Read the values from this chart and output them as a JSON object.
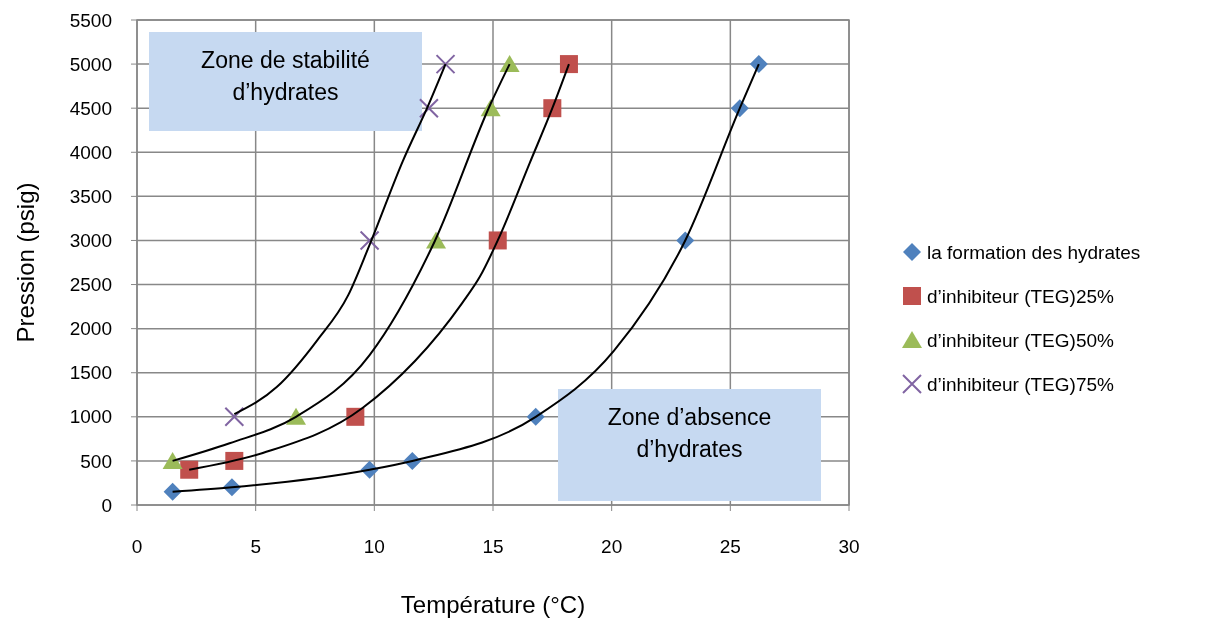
{
  "chart_data": {
    "type": "scatter",
    "xlabel": "Température  (°C)",
    "ylabel": "Pression (psig)",
    "xlim": [
      0,
      30
    ],
    "xticks": [
      0,
      5,
      10,
      15,
      20,
      25,
      30
    ],
    "ylim": [
      0,
      5500
    ],
    "yticks": [
      0,
      500,
      1000,
      1500,
      2000,
      2500,
      3000,
      3500,
      4000,
      4500,
      5000,
      5500
    ],
    "grid": true,
    "legend": "right",
    "annotations": [
      "Zone de stabilité\nd’hydrates",
      "Zone d’absence\nd’hydrates"
    ],
    "series": [
      {
        "name": "la formation des hydrates",
        "color": "#4f81bd",
        "marker": "diamond",
        "x": [
          1.5,
          4,
          9.8,
          11.6,
          16.8,
          23.1,
          25.4,
          26.2
        ],
        "values": [
          150,
          200,
          400,
          500,
          1000,
          3000,
          4500,
          5000
        ]
      },
      {
        "name": "d’inhibiteur (TEG)25%",
        "color": "#c0504d",
        "marker": "square",
        "x": [
          2.2,
          4.1,
          9.2,
          15.2,
          17.5,
          18.2
        ],
        "values": [
          400,
          500,
          1000,
          3000,
          4500,
          5000
        ]
      },
      {
        "name": "d’inhibiteur (TEG)50%",
        "color": "#9bbb59",
        "marker": "triangle",
        "x": [
          1.5,
          6.7,
          12.6,
          14.9,
          15.7
        ],
        "values": [
          500,
          1000,
          3000,
          4500,
          5000
        ]
      },
      {
        "name": "d’inhibiteur (TEG)75%",
        "color": "#8064a2",
        "marker": "cross",
        "x": [
          4.1,
          9.8,
          12.3,
          13
        ],
        "values": [
          1000,
          3000,
          4500,
          5000
        ]
      },
      {
        "type": "line",
        "color": "#000000",
        "marker": "none",
        "x": [
          1.5,
          4,
          9.8,
          11.6,
          16.8,
          20.1,
          23.1,
          25.4,
          26.2
        ],
        "values": [
          150,
          200,
          400,
          500,
          1000,
          1750,
          3000,
          4500,
          5000
        ]
      },
      {
        "type": "line",
        "color": "#000000",
        "marker": "none",
        "x": [
          2.2,
          5.3,
          9.5,
          13.7,
          14.45,
          15.2,
          16.55,
          17.5,
          18.2
        ],
        "values": [
          400,
          590,
          1100,
          2290,
          2590,
          3000,
          3880,
          4500,
          5000
        ]
      },
      {
        "type": "line",
        "color": "#000000",
        "marker": "none",
        "x": [
          1.5,
          3.9,
          6.7,
          9.8,
          12.56,
          14.9,
          15.7
        ],
        "values": [
          500,
          700,
          1000,
          1700,
          3000,
          4550,
          5000
        ]
      },
      {
        "type": "line",
        "color": "#000000",
        "marker": "none",
        "x": [
          4.1,
          5.9,
          7.6,
          8.9,
          9.8,
          11.2,
          12.3,
          13
        ],
        "values": [
          1030,
          1340,
          1870,
          2380,
          2950,
          3900,
          4550,
          5000
        ]
      }
    ]
  }
}
